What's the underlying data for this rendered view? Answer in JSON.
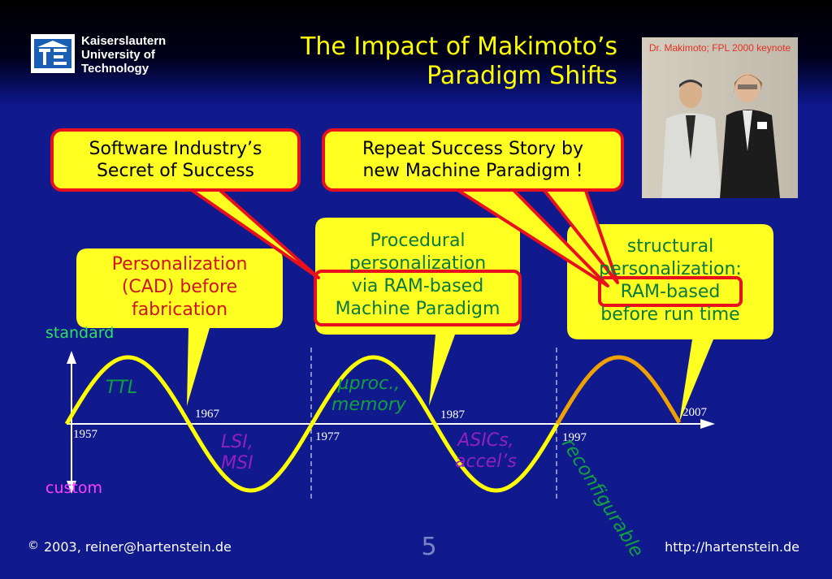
{
  "header": {
    "university": [
      "Kaiserslautern",
      "University of",
      "Technology"
    ],
    "title_lines": [
      "The Impact of Makimoto’s",
      "Paradigm Shifts"
    ]
  },
  "photo": {
    "caption": "Dr. Makimoto; FPL 2000 keynote"
  },
  "callouts": {
    "software": [
      "Software Industry’s",
      "Secret of Success"
    ],
    "repeat": [
      "Repeat Success Story by",
      "new Machine Paradigm !"
    ]
  },
  "bubbles": {
    "personalization": [
      "Personalization",
      "(CAD) before",
      "fabrication"
    ],
    "procedural": [
      "Procedural",
      "personalization",
      "via RAM-based",
      "Machine Paradigm"
    ],
    "structural": [
      "structural",
      "personalization:",
      "RAM-based",
      "before run time"
    ]
  },
  "diagram": {
    "axis_top": "standard",
    "axis_bottom": "custom",
    "years": [
      "1957",
      "1967",
      "1977",
      "1987",
      "1997",
      "2007"
    ],
    "eras": {
      "ttl": "TTL",
      "lsi": [
        "LSI,",
        "MSI"
      ],
      "uproc": [
        "µproc.,",
        "memory"
      ],
      "asics": [
        "ASICs,",
        "accel’s"
      ],
      "reconfigurable": "reconfigurable"
    }
  },
  "footer": {
    "copyright_symbol": "©",
    "year": "2003,",
    "email": "reiner@hartenstein.de",
    "page": "5",
    "url": "http://hartenstein.de"
  },
  "colors": {
    "background": "#101a8c",
    "title": "#ffff00",
    "bubble": "#ffff22",
    "bubble_red_text": "#d0141e",
    "bubble_green_text": "#0a7a3a",
    "callout_border": "#e8101c",
    "wave": "#ffff00",
    "wave_end": "#f0a000",
    "standard_label": "#30e060",
    "custom_label": "#ff40ff",
    "era_green": "#10a040",
    "era_magenta": "#9020c0"
  }
}
